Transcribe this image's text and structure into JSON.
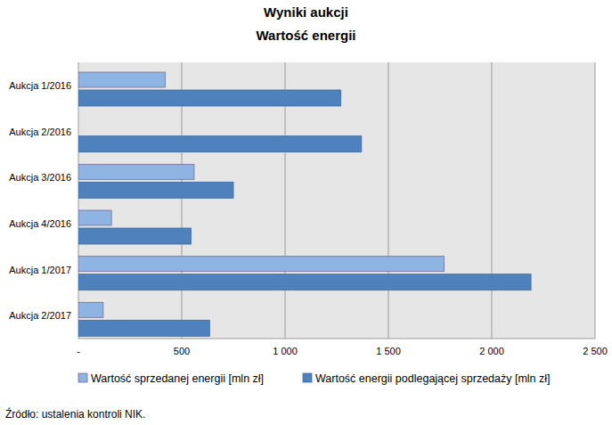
{
  "chart_data": {
    "type": "bar",
    "orientation": "horizontal",
    "title": "Wyniki aukcji",
    "subtitle": "Wartość energii",
    "annotations": [
      "Źródło: ustalenia kontroli NIK."
    ],
    "categories": [
      "Aukcja 1/2016",
      "Aukcja 2/2016",
      "Aukcja 3/2016",
      "Aukcja 4/2016",
      "Aukcja 1/2017",
      "Aukcja 2/2017"
    ],
    "series": [
      {
        "name": "Wartość sprzedanej energii [mln zł]",
        "color": "#8eb4e3",
        "values": [
          420,
          null,
          560,
          160,
          1770,
          120
        ]
      },
      {
        "name": "Wartość energii podlegającej sprzedaży [mln zł]",
        "color": "#4f81bd",
        "values": [
          1270,
          1370,
          750,
          545,
          2190,
          635
        ]
      }
    ],
    "xlim": [
      0,
      2500
    ],
    "xticks": [
      {
        "value": 0,
        "label": "-"
      },
      500,
      {
        "value": 1000,
        "label": "1 000"
      },
      {
        "value": 1500,
        "label": "1 500"
      },
      {
        "value": 2000,
        "label": "2 000"
      },
      {
        "value": 2500,
        "label": "2 500"
      }
    ],
    "grid": true,
    "legend": "bottom"
  }
}
